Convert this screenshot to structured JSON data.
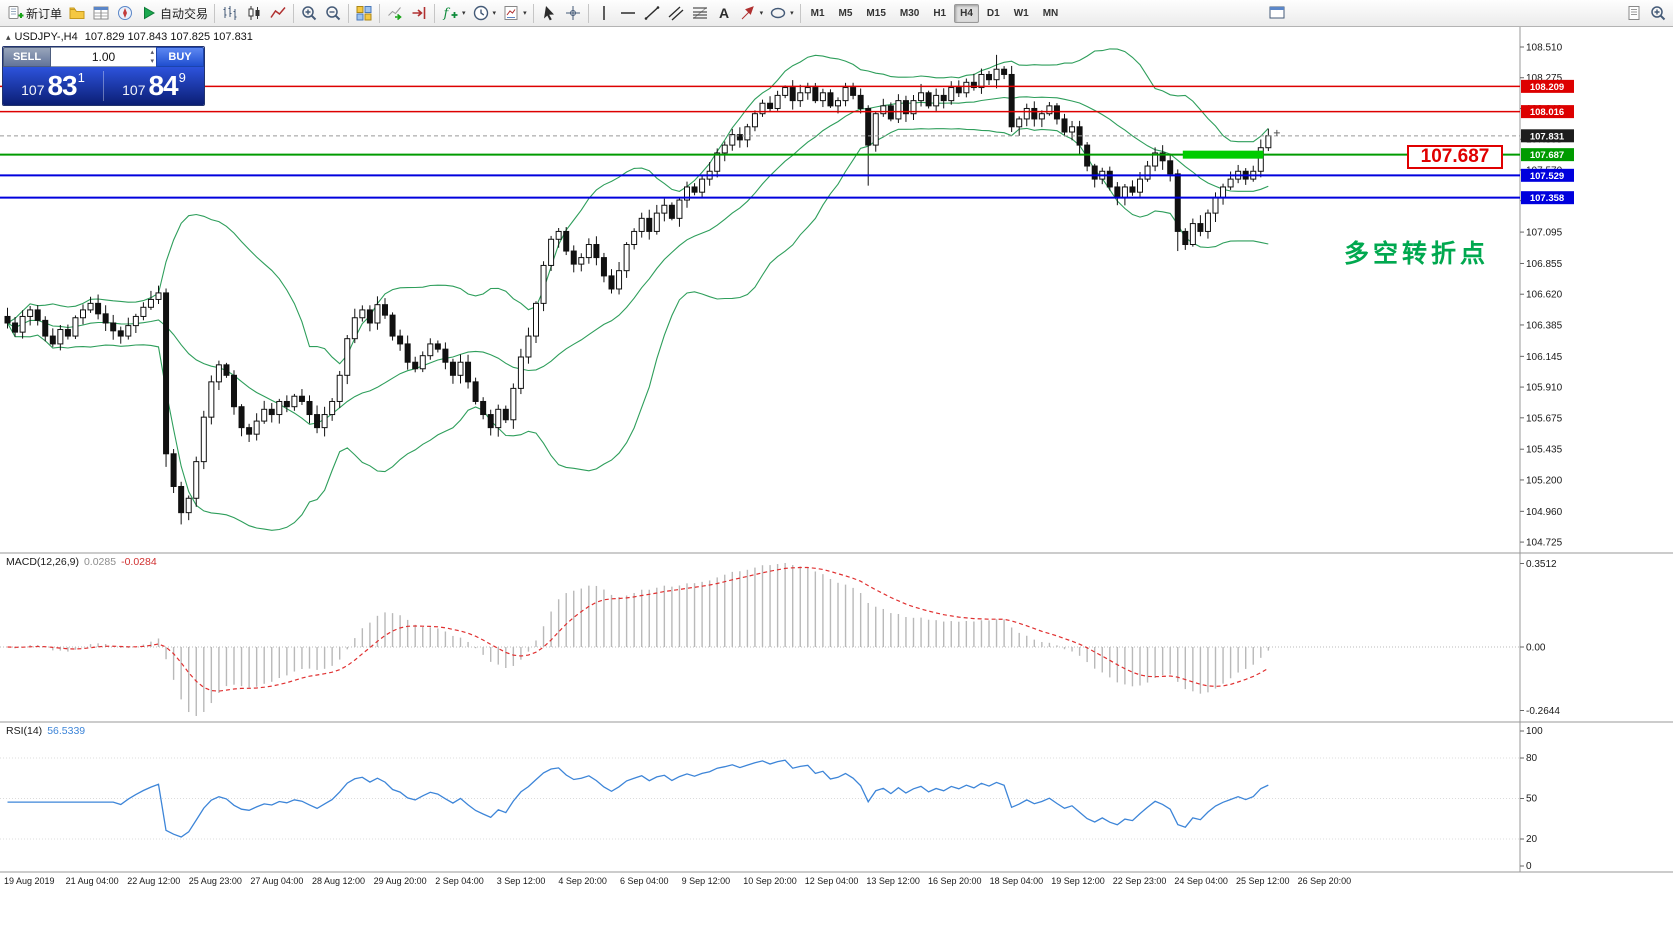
{
  "toolbar": {
    "groups": [
      {
        "items": [
          {
            "name": "new-order-button",
            "icon": "new-order",
            "label": "新订单"
          },
          {
            "name": "profiles-button",
            "icon": "profiles"
          },
          {
            "name": "market-watch-button",
            "icon": "market-watch"
          },
          {
            "name": "navigator-button",
            "icon": "navigator"
          },
          {
            "name": "autotrading-button",
            "icon": "autotrading",
            "label": "自动交易"
          }
        ]
      },
      {
        "items": [
          {
            "name": "bar-chart-button",
            "icon": "bars"
          },
          {
            "name": "candlestick-chart-button",
            "icon": "candles"
          },
          {
            "name": "line-chart-button",
            "icon": "line"
          }
        ]
      },
      {
        "items": [
          {
            "name": "zoom-in-button",
            "icon": "zoom-in"
          },
          {
            "name": "zoom-out-button",
            "icon": "zoom-out"
          }
        ]
      },
      {
        "items": [
          {
            "name": "tile-windows-button",
            "icon": "tile"
          }
        ]
      },
      {
        "items": [
          {
            "name": "auto-scroll-button",
            "icon": "autoscroll"
          },
          {
            "name": "chart-shift-button",
            "icon": "shift"
          }
        ]
      },
      {
        "items": [
          {
            "name": "indicators-menu-button",
            "icon": "indicators",
            "caret": true
          },
          {
            "name": "periods-menu-button",
            "icon": "clock",
            "caret": true
          },
          {
            "name": "templates-menu-button",
            "icon": "template",
            "caret": true
          }
        ]
      },
      {
        "items": [
          {
            "name": "cursor-tool-button",
            "icon": "cursor"
          },
          {
            "name": "crosshair-tool-button",
            "icon": "crosshair"
          }
        ]
      },
      {
        "items": [
          {
            "name": "vertical-line-tool-button",
            "icon": "vline"
          },
          {
            "name": "horizontal-line-tool-button",
            "icon": "hline"
          },
          {
            "name": "trendline-tool-button",
            "icon": "trendline"
          },
          {
            "name": "equidistant-channel-tool-button",
            "icon": "channel"
          },
          {
            "name": "fibonacci-tool-button",
            "icon": "fibo"
          },
          {
            "name": "text-tool-button",
            "icon": "text"
          },
          {
            "name": "arrows-tool-button",
            "icon": "arrow",
            "caret": true
          },
          {
            "name": "shapes-tool-button",
            "icon": "ellipse",
            "caret": true
          }
        ]
      }
    ],
    "timeframes": {
      "items": [
        "M1",
        "M5",
        "M15",
        "M30",
        "H1",
        "H4",
        "D1",
        "W1",
        "MN"
      ],
      "active": "H4"
    },
    "mid_right_items": [
      {
        "name": "new-chart-window-button",
        "icon": "window"
      }
    ],
    "far_right_items": [
      {
        "name": "chart-list-button",
        "icon": "doc"
      },
      {
        "name": "search-button",
        "icon": "zoom-in"
      }
    ]
  },
  "chart": {
    "title_symbol": "USDJPY-,H4",
    "title_ohlc": "107.829 107.843 107.825 107.831",
    "trade_panel": {
      "sell_label": "SELL",
      "buy_label": "BUY",
      "volume": "1.00",
      "sell_prefix": "107",
      "sell_big": "83",
      "sell_sup": "1",
      "buy_prefix": "107",
      "buy_big": "84",
      "buy_sup": "9"
    },
    "callout": "107.687",
    "annotation": "多空转折点"
  },
  "colors": {
    "resistance_red": "#dd0000",
    "support_blue": "#0000dd",
    "pivot_green": "#009b00",
    "annotation_green": "#00a84f",
    "bollinger_green": "#2e9e5b",
    "rsi_blue": "#3d85d8",
    "macd_signal_red": "#e03030",
    "macd_bar_silver": "#b9b9b9",
    "bid_label_bg": "#1d1d1d",
    "highlight_green": "#00cc00"
  },
  "chart_data": {
    "type": "candlestick",
    "symbol": "USDJPY-",
    "timeframe": "H4",
    "price_axis_ticks": [
      "108.510",
      "108.275",
      "108.040",
      "107.805",
      "107.570",
      "107.335",
      "107.095",
      "106.855",
      "106.620",
      "106.385",
      "106.145",
      "105.910",
      "105.675",
      "105.435",
      "105.200",
      "104.960",
      "104.725"
    ],
    "time_axis_labels": [
      "19 Aug 2019",
      "21 Aug 04:00",
      "22 Aug 12:00",
      "25 Aug 23:00",
      "27 Aug 04:00",
      "28 Aug 12:00",
      "29 Aug 20:00",
      "2 Sep 04:00",
      "3 Sep 12:00",
      "4 Sep 20:00",
      "6 Sep 04:00",
      "9 Sep 12:00",
      "10 Sep 20:00",
      "12 Sep 04:00",
      "13 Sep 12:00",
      "16 Sep 20:00",
      "18 Sep 04:00",
      "19 Sep 12:00",
      "22 Sep 23:00",
      "24 Sep 04:00",
      "25 Sep 12:00",
      "26 Sep 20:00"
    ],
    "first_open": 106.45,
    "closes": [
      106.4,
      106.33,
      106.45,
      106.5,
      106.42,
      106.3,
      106.24,
      106.35,
      106.3,
      106.44,
      106.5,
      106.55,
      106.47,
      106.4,
      106.34,
      106.3,
      106.38,
      106.45,
      106.52,
      106.58,
      106.63,
      105.4,
      105.15,
      104.95,
      105.06,
      105.34,
      105.68,
      105.95,
      106.08,
      106.0,
      105.76,
      105.6,
      105.55,
      105.65,
      105.74,
      105.7,
      105.8,
      105.76,
      105.84,
      105.8,
      105.7,
      105.6,
      105.7,
      105.8,
      106.0,
      106.28,
      106.44,
      106.5,
      106.4,
      106.54,
      106.46,
      106.3,
      106.24,
      106.1,
      106.05,
      106.15,
      106.24,
      106.2,
      106.1,
      106.0,
      106.1,
      105.95,
      105.8,
      105.7,
      105.6,
      105.74,
      105.66,
      105.9,
      106.14,
      106.3,
      106.55,
      106.84,
      107.04,
      107.1,
      106.95,
      106.85,
      106.9,
      107.0,
      106.9,
      106.76,
      106.66,
      106.8,
      107.0,
      107.1,
      107.2,
      107.1,
      107.24,
      107.3,
      107.2,
      107.34,
      107.44,
      107.4,
      107.5,
      107.56,
      107.7,
      107.76,
      107.84,
      107.8,
      107.9,
      108.0,
      108.08,
      108.04,
      108.14,
      108.2,
      108.1,
      108.16,
      108.2,
      108.1,
      108.16,
      108.06,
      108.1,
      108.2,
      108.14,
      108.04,
      107.76,
      108.0,
      108.06,
      107.96,
      108.1,
      108.0,
      108.1,
      108.16,
      108.06,
      108.14,
      108.1,
      108.2,
      108.16,
      108.24,
      108.2,
      108.3,
      108.26,
      108.34,
      108.3,
      107.9,
      107.96,
      108.04,
      107.96,
      108.0,
      108.06,
      107.96,
      107.86,
      107.9,
      107.76,
      107.6,
      107.5,
      107.56,
      107.44,
      107.36,
      107.44,
      107.4,
      107.5,
      107.6,
      107.7,
      107.64,
      107.54,
      107.1,
      107.0,
      107.16,
      107.1,
      107.24,
      107.36,
      107.44,
      107.5,
      107.56,
      107.5,
      107.56,
      107.74,
      107.831
    ],
    "wick_overrides": {
      "21": {
        "low": 105.3
      },
      "23": {
        "low": 104.86
      },
      "114": {
        "low": 107.45
      },
      "131": {
        "high": 108.45
      },
      "155": {
        "low": 106.95
      },
      "167": {
        "high": 107.885
      }
    },
    "overlays": {
      "bollinger_period": 20,
      "bollinger_deviation": 2
    },
    "levels": [
      {
        "price": 108.209,
        "label": "108.209",
        "color": "#dd0000",
        "width": 1.4
      },
      {
        "price": 108.016,
        "label": "108.016",
        "color": "#dd0000",
        "width": 1.4
      },
      {
        "price": 107.687,
        "label": "107.687",
        "color": "#009b00",
        "width": 2
      },
      {
        "price": 107.529,
        "label": "107.529",
        "color": "#0000dd",
        "width": 2
      },
      {
        "price": 107.358,
        "label": "107.358",
        "color": "#0000dd",
        "width": 2
      }
    ],
    "bid": {
      "price": 107.831,
      "label": "107.831"
    },
    "highlight_segment": {
      "price": 107.687,
      "from_index": 156,
      "to_index": 166,
      "color": "#00cc00"
    },
    "macd": {
      "label": "MACD(12,26,9)",
      "main_value": "0.0285",
      "signal_value": "-0.0284",
      "axis_labels": [
        "0.3512",
        "0.00",
        "-0.2644"
      ],
      "params": [
        12,
        26,
        9
      ]
    },
    "rsi": {
      "label": "RSI(14)",
      "value": "56.5339",
      "axis_labels": [
        "100",
        "80",
        "50",
        "20",
        "0"
      ],
      "period": 14
    }
  }
}
